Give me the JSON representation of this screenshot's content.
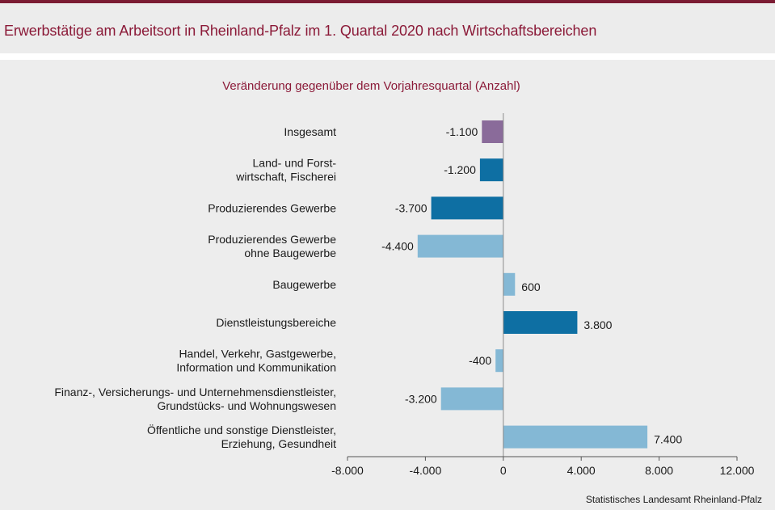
{
  "title": "Erwerbstätige am Arbeitsort in Rheinland-Pfalz im 1. Quartal 2020 nach Wirtschaftsbereichen",
  "source": "Statistisches Landesamt Rheinland-Pfalz",
  "colors": {
    "accent": "#8b1a38",
    "border": "#7b1c33",
    "total": "#8a6b9a",
    "main": "#0e6fa3",
    "sub": "#84b8d5"
  },
  "chart_data": {
    "type": "bar",
    "orientation": "horizontal",
    "subtitle": "Veränderung gegenüber dem Vorjahresquartal (Anzahl)",
    "xlim": [
      -8000,
      12000
    ],
    "xticks": [
      -8000,
      -4000,
      0,
      4000,
      8000,
      12000
    ],
    "xtick_labels": [
      "-8.000",
      "-4.000",
      "0",
      "4.000",
      "8.000",
      "12.000"
    ],
    "grid": false,
    "categories": [
      [
        "Insgesamt"
      ],
      [
        "Land- und Forst-",
        "wirtschaft, Fischerei"
      ],
      [
        "Produzierendes Gewerbe"
      ],
      [
        "Produzierendes Gewerbe",
        "ohne Baugewerbe"
      ],
      [
        "Baugewerbe"
      ],
      [
        "Dienstleistungsbereiche"
      ],
      [
        "Handel, Verkehr, Gastgewerbe,",
        "Information und Kommunikation"
      ],
      [
        "Finanz-, Versicherungs- und Unternehmensdienstleister,",
        "Grundstücks- und Wohnungswesen"
      ],
      [
        "Öffentliche und sonstige Dienstleister,",
        "Erziehung, Gesundheit"
      ]
    ],
    "values": [
      -1100,
      -1200,
      -3700,
      -4400,
      600,
      3800,
      -400,
      -3200,
      7400
    ],
    "value_labels": [
      "-1.100",
      "-1.200",
      "-3.700",
      "-4.400",
      "600",
      "3.800",
      "-400",
      "-3.200",
      "7.400"
    ],
    "bar_colors": [
      "total",
      "main",
      "main",
      "sub",
      "sub",
      "main",
      "sub",
      "sub",
      "sub"
    ]
  }
}
